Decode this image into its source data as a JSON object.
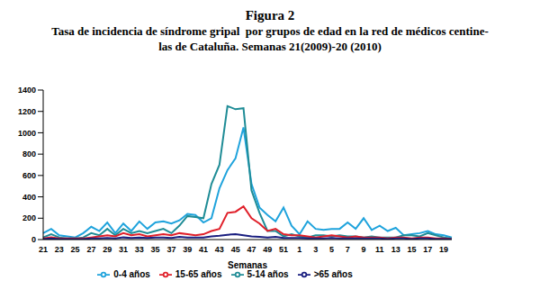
{
  "chart_data": {
    "type": "line",
    "title": "Figura 2",
    "subtitle": [
      "Tasa de incidencia de síndrome gripal  por grupos de edad en la red de médicos centine-",
      "las de Cataluña. Semanas 21(2009)-20 (2010)"
    ],
    "x_label": "Semanas",
    "categories": [
      "21",
      null,
      "23",
      null,
      "25",
      null,
      "27",
      null,
      "29",
      null,
      "31",
      null,
      "33",
      null,
      "35",
      null,
      "37",
      null,
      "39",
      null,
      "41",
      null,
      "43",
      null,
      "45",
      null,
      "47",
      null,
      "49",
      null,
      "51",
      null,
      "1",
      null,
      "3",
      null,
      "5",
      null,
      "7",
      null,
      "9",
      null,
      "11",
      null,
      "13",
      null,
      "15",
      null,
      "17",
      null,
      "19",
      null
    ],
    "series": [
      {
        "name": "0-4 años",
        "color": "#1fa3dc",
        "values": [
          60,
          100,
          40,
          30,
          20,
          60,
          120,
          80,
          160,
          60,
          150,
          80,
          170,
          100,
          160,
          170,
          150,
          180,
          240,
          230,
          160,
          200,
          480,
          650,
          760,
          1050,
          520,
          300,
          230,
          170,
          300,
          130,
          50,
          170,
          100,
          90,
          100,
          100,
          160,
          100,
          200,
          90,
          130,
          80,
          110,
          40,
          50,
          60,
          80,
          50,
          40,
          20
        ]
      },
      {
        "name": "5-14 años",
        "color": "#1f8c96",
        "values": [
          20,
          50,
          20,
          10,
          10,
          20,
          60,
          40,
          100,
          40,
          100,
          60,
          80,
          60,
          80,
          100,
          60,
          130,
          220,
          210,
          200,
          520,
          700,
          1250,
          1220,
          1230,
          460,
          250,
          80,
          80,
          30,
          50,
          30,
          20,
          40,
          40,
          30,
          40,
          30,
          30,
          20,
          30,
          20,
          20,
          20,
          40,
          40,
          30,
          60,
          40,
          20,
          10
        ]
      },
      {
        "name": "15-65 años",
        "color": "#e0202a",
        "values": [
          10,
          20,
          10,
          10,
          10,
          10,
          20,
          30,
          40,
          30,
          60,
          40,
          50,
          30,
          40,
          50,
          40,
          60,
          50,
          40,
          50,
          80,
          100,
          250,
          260,
          310,
          200,
          150,
          80,
          100,
          50,
          40,
          40,
          30,
          20,
          30,
          40,
          30,
          20,
          30,
          20,
          20,
          20,
          10,
          20,
          20,
          10,
          20,
          20,
          10,
          10,
          5
        ]
      },
      {
        "name": ">65 años",
        "color": "#1a1f80",
        "values": [
          5,
          10,
          5,
          5,
          5,
          5,
          10,
          10,
          15,
          10,
          20,
          15,
          20,
          15,
          20,
          20,
          15,
          25,
          20,
          20,
          20,
          30,
          35,
          45,
          50,
          40,
          30,
          25,
          20,
          25,
          15,
          15,
          15,
          10,
          10,
          10,
          15,
          10,
          10,
          10,
          10,
          10,
          10,
          5,
          10,
          10,
          5,
          10,
          10,
          5,
          5,
          5
        ]
      }
    ],
    "ylim": [
      0,
      1400
    ],
    "yticks": [
      0,
      200,
      400,
      600,
      800,
      1000,
      1200,
      1400
    ],
    "grid": false,
    "legend": "bottom"
  }
}
